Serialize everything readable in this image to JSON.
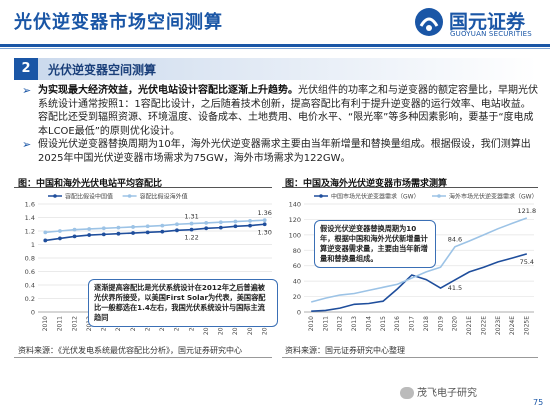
{
  "header": {
    "title": "光伏逆变器市场空间测算",
    "logo_text": "国元证券",
    "logo_sub": "GUOYUAN SECURITIES"
  },
  "section": {
    "number": "2",
    "title": "光伏逆变器空间测算"
  },
  "bullets": {
    "b1_lead": "为实现最大经济效益，光伏电站设计容配比逐渐上升趋势。",
    "b1_rest": "光伏组件的功率之和与逆变器的额定容量比，早期光伏系统设计通常按照1：1容配比设计，之后随着技术创新，提高容配比有利于提升逆变器的运行效率、电站收益。容配比还受到辐照资源、环境温度、设备成本、土地费用、电价水平、“限光率”等多种因素影响，要基于“度电成本LCOE最低”的原则优化设计。",
    "b2": "假设光伏逆变器替换周期为10年，海外光伏逆变器需求主要由当年新增量和替换量组成。根据假设，我们测算出2025年中国光伏逆变器市场需求为75GW，海外市场需求为122GW。"
  },
  "chart_left": {
    "title": "图：中国和海外光伏电站平均容配比",
    "source": "资料来源：《光伏发电系统最优容配比分析》，国元证券研究中心",
    "annotation": "逐渐提高容配比是光伏系统设计在2012年之后普遍被光伏界所接受，以美国First Solar为代表，美国容配比一般都选在1.4左右，我国光伏系统设计与国际主流趋同"
  },
  "chart_right": {
    "title": "图：中国及海外光伏逆变器市场需求测算",
    "source": "资料来源：国元证券研究中心整理",
    "annotation": "假设光伏逆变器替换周期为10年，根据中国和海外光伏新增量计算逆变器需求量，主要由当年新增量和替换量组成。"
  },
  "chart_data": [
    {
      "type": "line",
      "categories": [
        "2010",
        "2011",
        "2012",
        "2013",
        "2014",
        "2015",
        "2016",
        "2017",
        "2018",
        "2019",
        "2020",
        "2021E",
        "2022E",
        "2023E",
        "2024E",
        "2025E"
      ],
      "series": [
        {
          "name": "容配比假设中国值",
          "color": "#1f4e9c",
          "values": [
            1.06,
            1.09,
            1.12,
            1.14,
            1.15,
            1.16,
            1.17,
            1.18,
            1.19,
            1.21,
            1.22,
            1.24,
            1.25,
            1.27,
            1.28,
            1.3
          ]
        },
        {
          "name": "容配比假设海外值",
          "color": "#9cc3e6",
          "values": [
            1.18,
            1.2,
            1.22,
            1.23,
            1.24,
            1.25,
            1.26,
            1.27,
            1.28,
            1.3,
            1.31,
            1.32,
            1.33,
            1.34,
            1.35,
            1.36
          ]
        }
      ],
      "labels": [
        {
          "text": "1.31",
          "series": 1,
          "index": 10
        },
        {
          "text": "1.22",
          "series": 0,
          "index": 10
        },
        {
          "text": "1.36",
          "series": 1,
          "index": 15
        },
        {
          "text": "1.30",
          "series": 0,
          "index": 15
        }
      ],
      "yticks": [
        "0",
        "0.2",
        "0.4",
        "0.6",
        "0.8",
        "1",
        "1.2",
        "1.4",
        "1.6"
      ],
      "ylim": [
        0,
        1.6
      ],
      "legend": "top"
    },
    {
      "type": "line",
      "categories": [
        "2010",
        "2011",
        "2012",
        "2013",
        "2014",
        "2015",
        "2016",
        "2017",
        "2018",
        "2019",
        "2020",
        "2021E",
        "2022E",
        "2023E",
        "2024E",
        "2025E"
      ],
      "series": [
        {
          "name": "中国市场光伏逆变器需求（GW）",
          "color": "#1f4e9c",
          "values": [
            1,
            2,
            5,
            10,
            11,
            14,
            30,
            48,
            42,
            31,
            41.5,
            52,
            58,
            65,
            70,
            75.4
          ]
        },
        {
          "name": "海外市场光伏逆变器需求（GW）",
          "color": "#9cc3e6",
          "values": [
            13,
            18,
            22,
            24,
            28,
            32,
            36,
            44,
            52,
            58,
            84.6,
            92,
            100,
            108,
            115,
            121.8
          ]
        }
      ],
      "labels": [
        {
          "text": "84.6",
          "series": 1,
          "index": 10
        },
        {
          "text": "41.5",
          "series": 0,
          "index": 10
        },
        {
          "text": "121.8",
          "series": 1,
          "index": 15
        },
        {
          "text": "75.4",
          "series": 0,
          "index": 15
        }
      ],
      "yticks": [
        "0",
        "20",
        "40",
        "60",
        "80",
        "100",
        "120",
        "140"
      ],
      "ylim": [
        0,
        140
      ],
      "legend": "top"
    }
  ],
  "footer": {
    "tag": "茂飞电子研究",
    "page": "75"
  }
}
